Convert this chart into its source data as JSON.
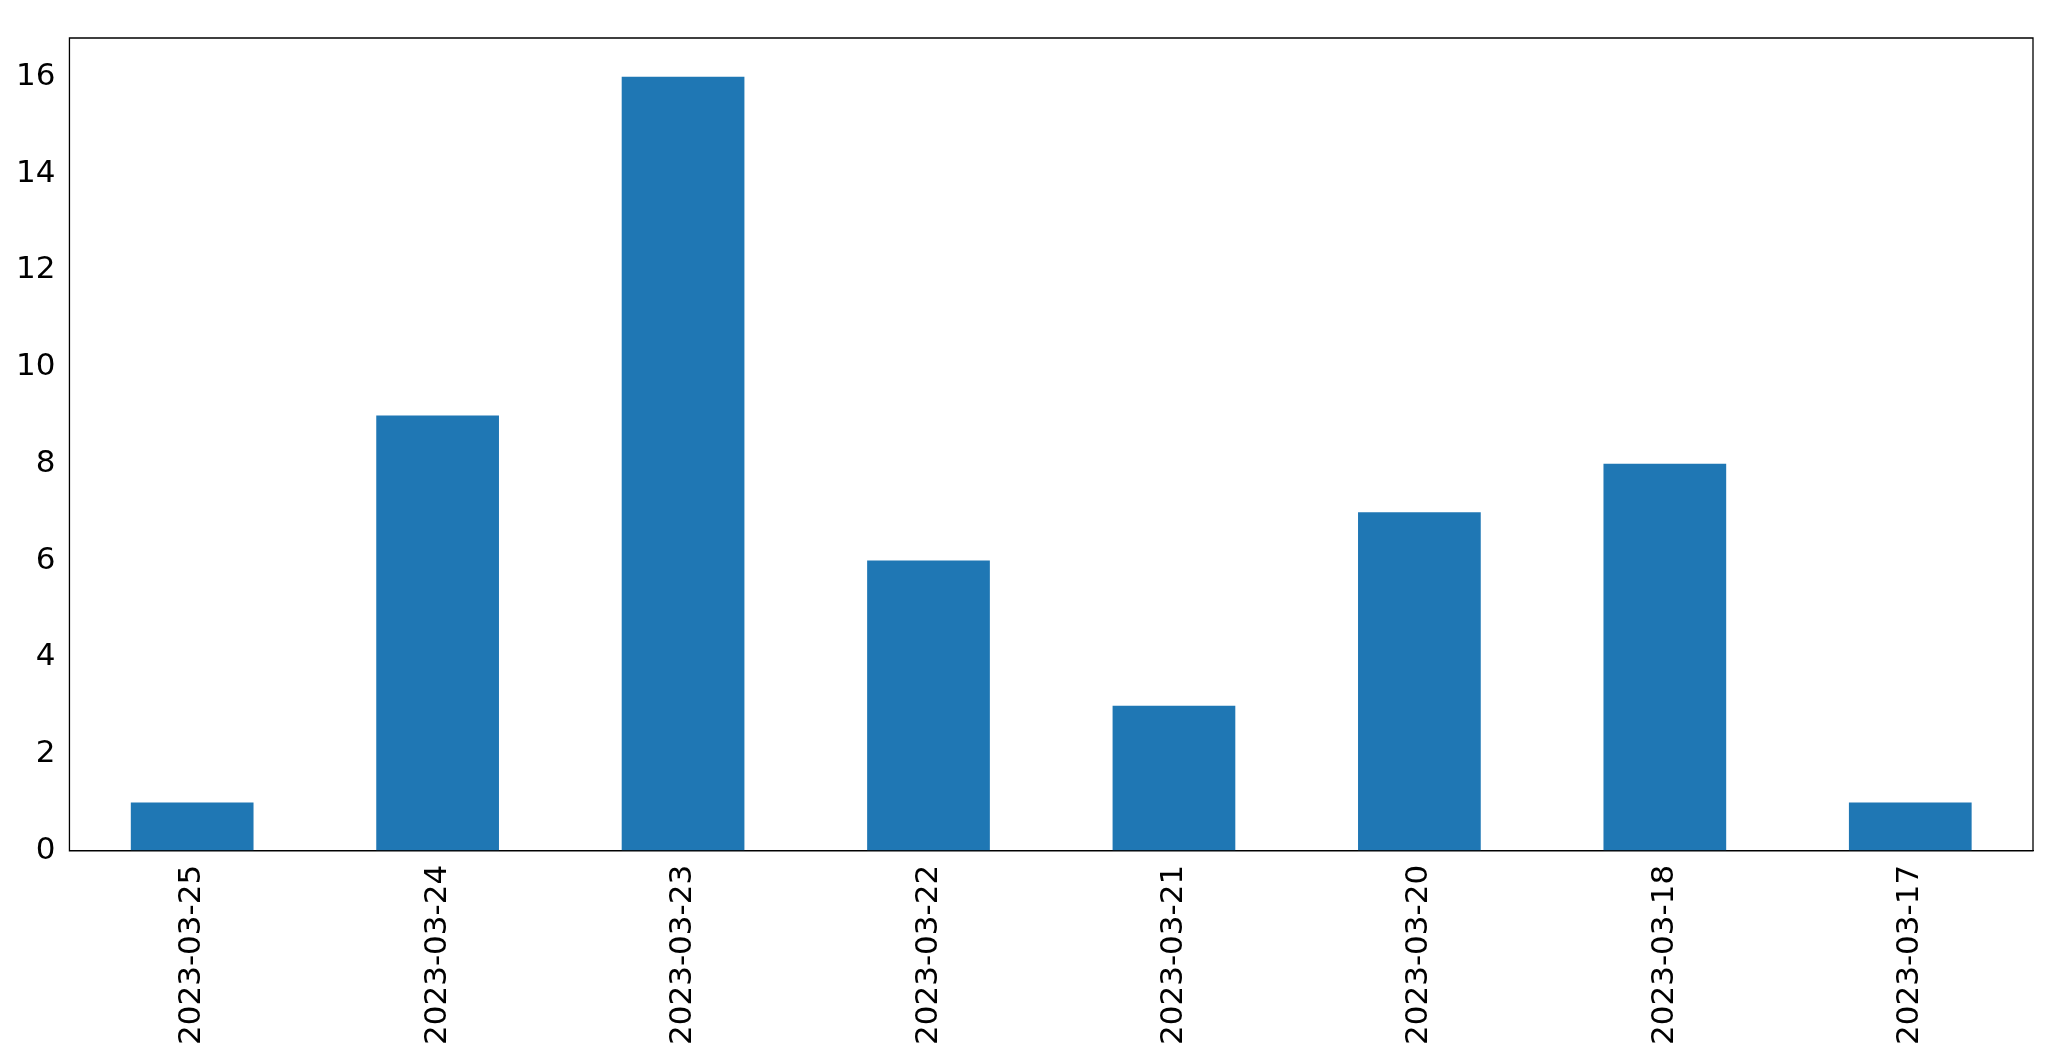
{
  "chart_data": {
    "type": "bar",
    "categories": [
      "2023-03-25",
      "2023-03-24",
      "2023-03-23",
      "2023-03-22",
      "2023-03-21",
      "2023-03-20",
      "2023-03-18",
      "2023-03-17"
    ],
    "values": [
      1,
      9,
      16,
      6,
      3,
      7,
      8,
      1
    ],
    "color": "#1f77b4",
    "ylim": [
      0,
      16.8
    ],
    "yticks": [
      0,
      2,
      4,
      6,
      8,
      10,
      12,
      14,
      16
    ],
    "grid": false,
    "legend": false
  }
}
